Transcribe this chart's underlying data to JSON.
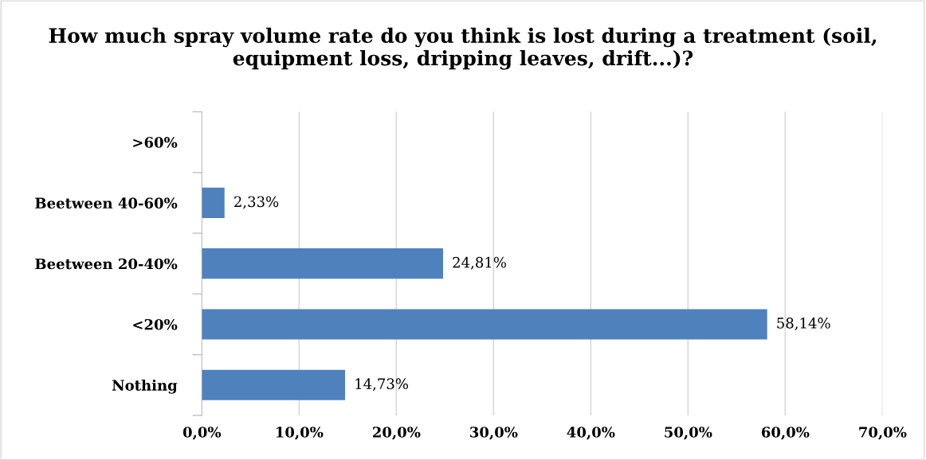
{
  "chart_data": {
    "type": "bar",
    "orientation": "horizontal",
    "title": "How much spray volume rate do you think is lost during a treatment (soil, equipment loss, dripping leaves, drift...)?",
    "categories": [
      ">60%",
      "Beetween 40-60%",
      "Beetween 20-40%",
      "<20%",
      "Nothing"
    ],
    "values": [
      0,
      2.33,
      24.81,
      58.14,
      14.73
    ],
    "value_labels": [
      null,
      "2,33%",
      "24,81%",
      "58,14%",
      "14,73%"
    ],
    "color": "#4f81bd",
    "xlim": [
      0,
      70
    ],
    "xticks": [
      {
        "value": 0,
        "label": "0,0%"
      },
      {
        "value": 10,
        "label": "10,0%"
      },
      {
        "value": 20,
        "label": "20,0%"
      },
      {
        "value": 30,
        "label": "30,0%"
      },
      {
        "value": 40,
        "label": "40,0%"
      },
      {
        "value": 50,
        "label": "50,0%"
      },
      {
        "value": 60,
        "label": "60,0%"
      },
      {
        "value": 70,
        "label": "70,0%"
      }
    ],
    "grid": "x",
    "legend": false
  }
}
